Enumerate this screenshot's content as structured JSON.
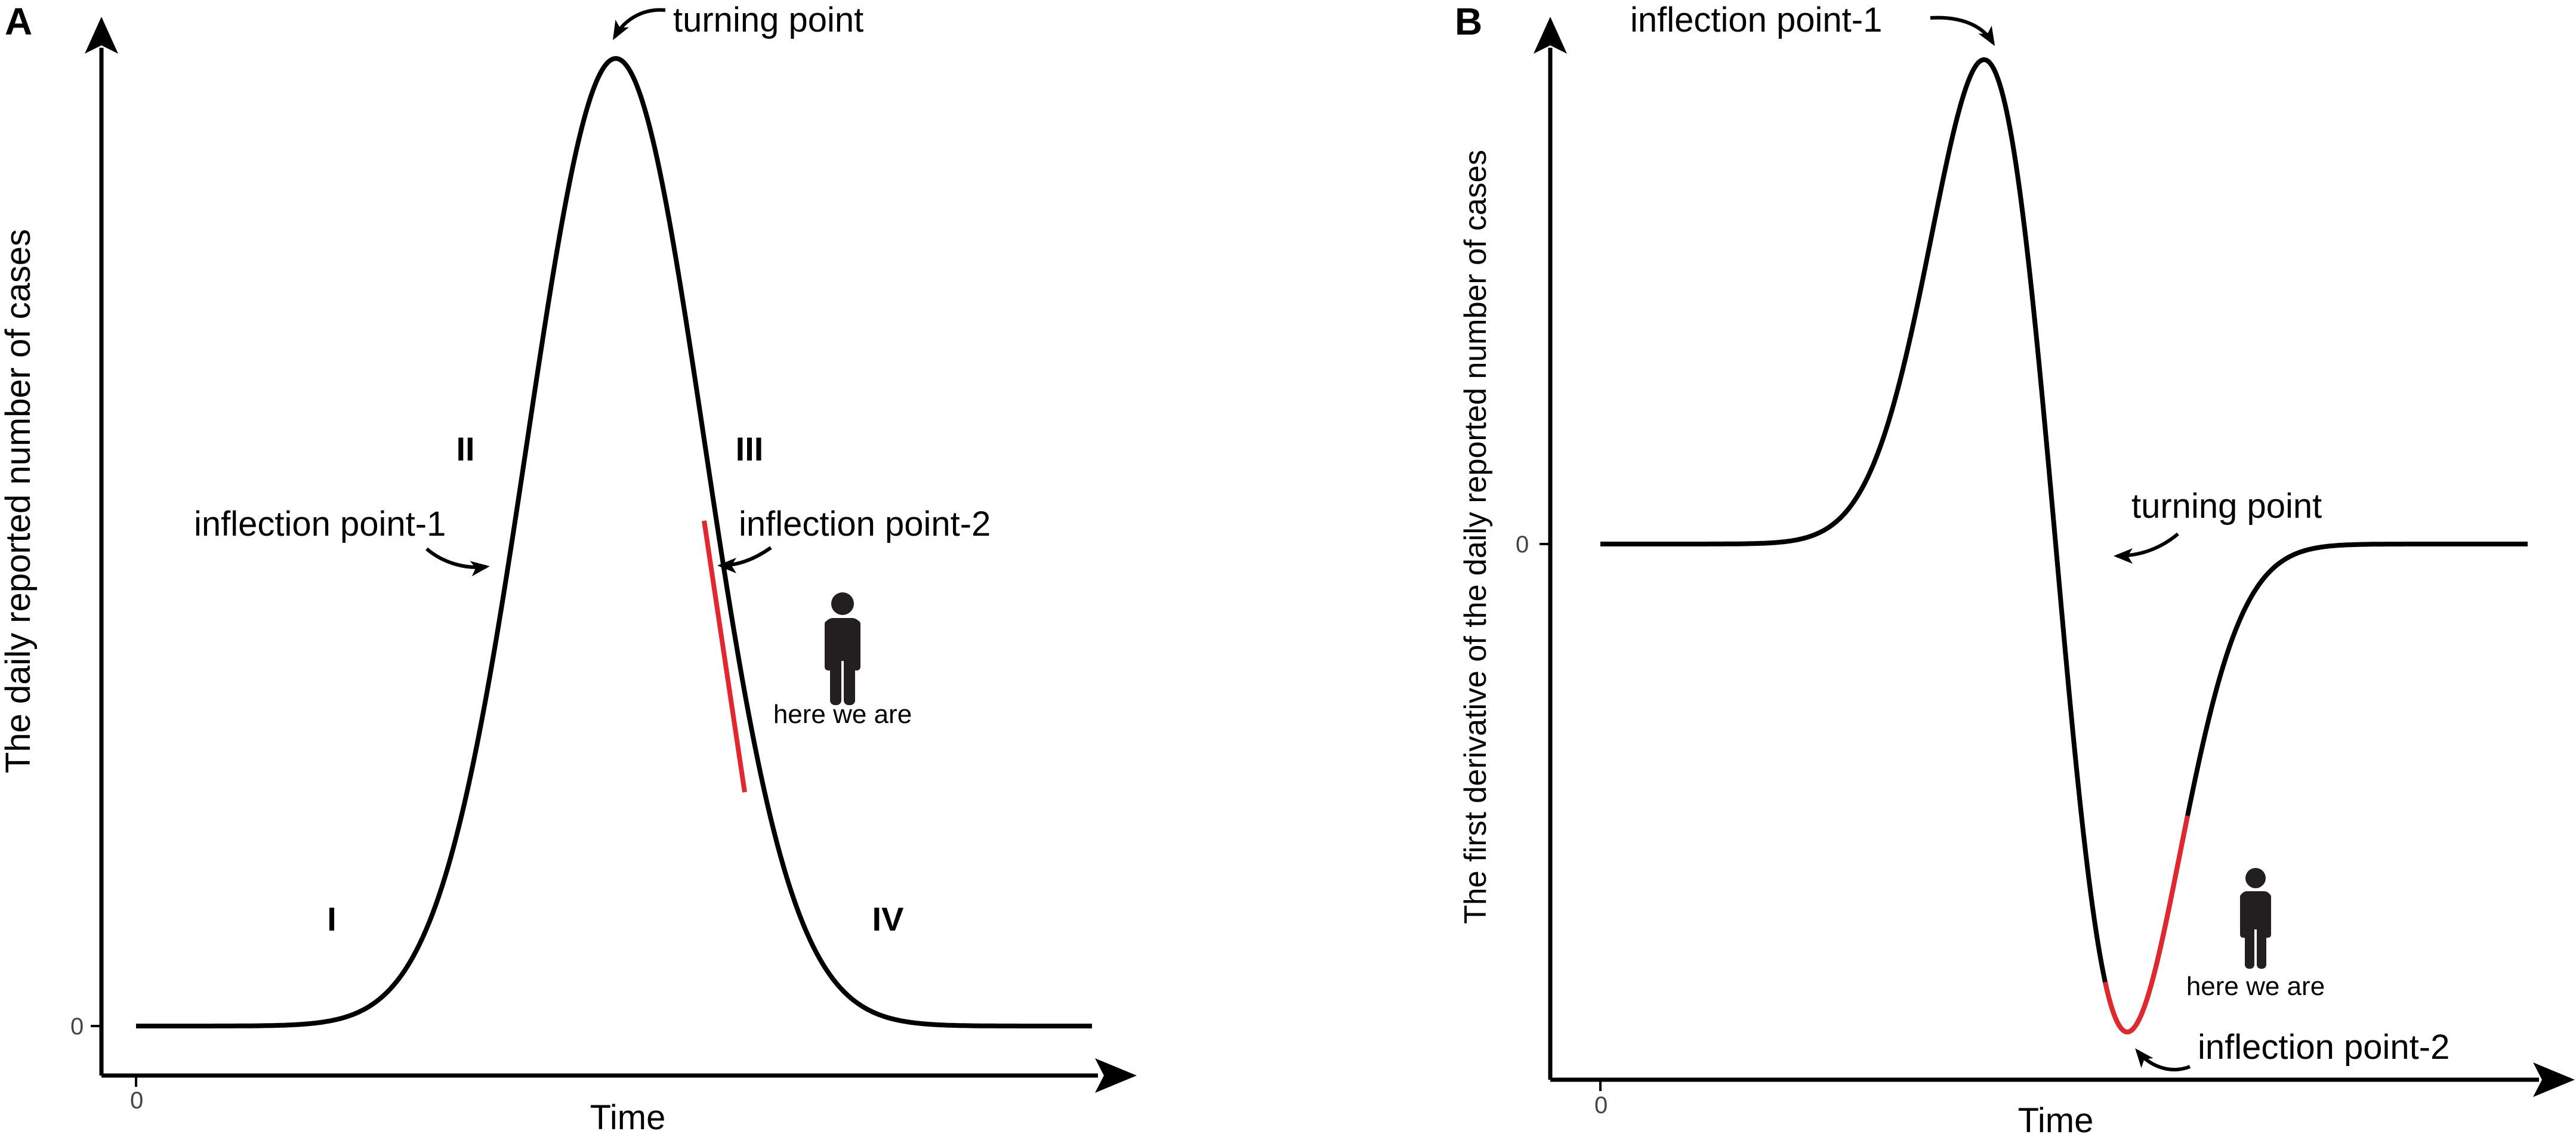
{
  "colors": {
    "curve": "#000000",
    "highlight": "#e0282e",
    "person": "#231f20"
  },
  "icons": [
    "person-icon",
    "curved-arrow-icon",
    "axis-arrowhead-icon"
  ],
  "panel_a": {
    "letter": "A",
    "ylabel": "The daily reported number of cases",
    "xlabel": "Time",
    "x_origin_tick": "0",
    "y_origin_tick": "0",
    "annotations": {
      "turning_point": "turning point",
      "inflection_1": "inflection point-1",
      "inflection_2": "inflection point-2",
      "here_we_are": "here we are"
    },
    "stages": [
      "I",
      "II",
      "III",
      "IV"
    ]
  },
  "panel_b": {
    "letter": "B",
    "ylabel": "The first derivative of the daily reported number of cases",
    "xlabel": "Time",
    "x_origin_tick": "0",
    "y_zero_tick": "0",
    "annotations": {
      "inflection_1": "inflection point-1",
      "turning_point": "turning point",
      "inflection_2": "inflection point-2",
      "here_we_are": "here we are"
    }
  }
}
